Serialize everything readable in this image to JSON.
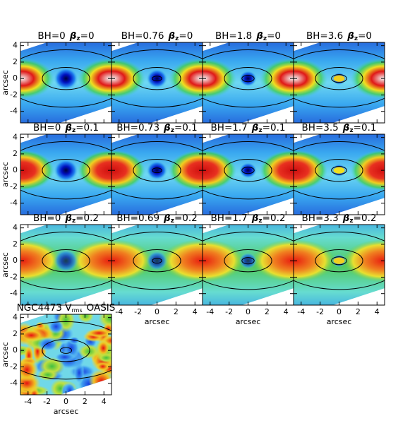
{
  "panels": [
    {
      "bh": "BH=0",
      "beta": "=0"
    },
    {
      "bh": "BH=0.76",
      "beta": "=0"
    },
    {
      "bh": "BH=1.8",
      "beta": "=0"
    },
    {
      "bh": "BH=3.6",
      "beta": "=0"
    },
    {
      "bh": "BH=0",
      "beta": "=0.1"
    },
    {
      "bh": "BH=0.73",
      "beta": "=0.1"
    },
    {
      "bh": "BH=1.7",
      "beta": "=0.1"
    },
    {
      "bh": "BH=3.5",
      "beta": "=0.1"
    },
    {
      "bh": "BH=0",
      "beta": "=0.2"
    },
    {
      "bh": "BH=0.69",
      "beta": "=0.2"
    },
    {
      "bh": "BH=1.7",
      "beta": "=0.2"
    },
    {
      "bh": "BH=3.3",
      "beta": "=0.2"
    }
  ],
  "beta_symbol": "β",
  "beta_sub": "z",
  "data_panel": {
    "title": "NGC4473 V",
    "title_sub": "rms",
    "title_suffix": "OASIS"
  },
  "axes": {
    "xlim": [
      -4.8,
      4.8
    ],
    "ylim": [
      -5.4,
      4.4
    ],
    "xticks": [
      -4,
      -2,
      0,
      2,
      4
    ],
    "yticks": [
      -4,
      -2,
      0,
      2,
      4
    ],
    "xlabel": "arcsec",
    "ylabel": "arcsec"
  }
}
